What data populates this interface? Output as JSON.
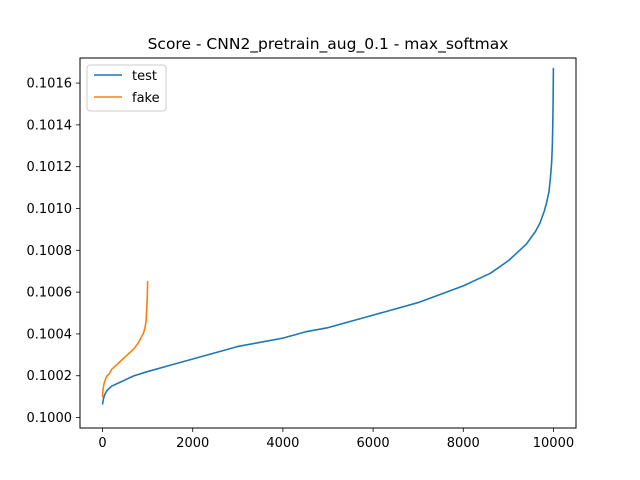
{
  "chart_data": {
    "type": "line",
    "title": "Score - CNN2_pretrain_aug_0.1 - max_softmax",
    "xlabel": "",
    "ylabel": "",
    "xlim": [
      -500,
      10500
    ],
    "ylim": [
      0.09995,
      0.10172
    ],
    "xticks": [
      0,
      2000,
      4000,
      6000,
      8000,
      10000
    ],
    "xtick_labels": [
      "0",
      "2000",
      "4000",
      "6000",
      "8000",
      "10000"
    ],
    "yticks": [
      0.1,
      0.1002,
      0.1004,
      0.1006,
      0.1008,
      0.101,
      0.1012,
      0.1014,
      0.1016
    ],
    "ytick_labels": [
      "0.1000",
      "0.1002",
      "0.1004",
      "0.1006",
      "0.1008",
      "0.1010",
      "0.1012",
      "0.1014",
      "0.1016"
    ],
    "grid": false,
    "legend_position": "upper-left",
    "series": [
      {
        "name": "test",
        "color": "#1f77b4",
        "x": [
          0,
          20,
          50,
          100,
          200,
          300,
          500,
          700,
          1000,
          1500,
          2000,
          2500,
          3000,
          3500,
          4000,
          4500,
          5000,
          5500,
          6000,
          6500,
          7000,
          7500,
          8000,
          8300,
          8600,
          8800,
          9000,
          9200,
          9400,
          9600,
          9700,
          9800,
          9850,
          9900,
          9930,
          9960,
          9975,
          9985,
          9992,
          9996,
          9999
        ],
        "y": [
          0.100065,
          0.10009,
          0.10011,
          0.10013,
          0.10015,
          0.10016,
          0.10018,
          0.1002,
          0.10022,
          0.10025,
          0.10028,
          0.10031,
          0.10034,
          0.10036,
          0.10038,
          0.10041,
          0.10043,
          0.10046,
          0.10049,
          0.10052,
          0.10055,
          0.10059,
          0.10063,
          0.10066,
          0.10069,
          0.10072,
          0.10075,
          0.10079,
          0.10083,
          0.10089,
          0.10093,
          0.10099,
          0.10103,
          0.10108,
          0.10114,
          0.10122,
          0.1013,
          0.1014,
          0.1015,
          0.1016,
          0.10167
        ]
      },
      {
        "name": "fake",
        "color": "#ff7f0e",
        "x": [
          0,
          5,
          15,
          30,
          60,
          100,
          150,
          200,
          300,
          400,
          500,
          600,
          700,
          800,
          850,
          900,
          930,
          950,
          965,
          975,
          985,
          992,
          997,
          999
        ],
        "y": [
          0.1001,
          0.10012,
          0.10014,
          0.10016,
          0.10018,
          0.1002,
          0.10021,
          0.10023,
          0.10025,
          0.10027,
          0.10029,
          0.10031,
          0.10033,
          0.10036,
          0.10038,
          0.1004,
          0.10042,
          0.10044,
          0.10046,
          0.1005,
          0.10054,
          0.10058,
          0.10062,
          0.10065
        ]
      }
    ]
  }
}
